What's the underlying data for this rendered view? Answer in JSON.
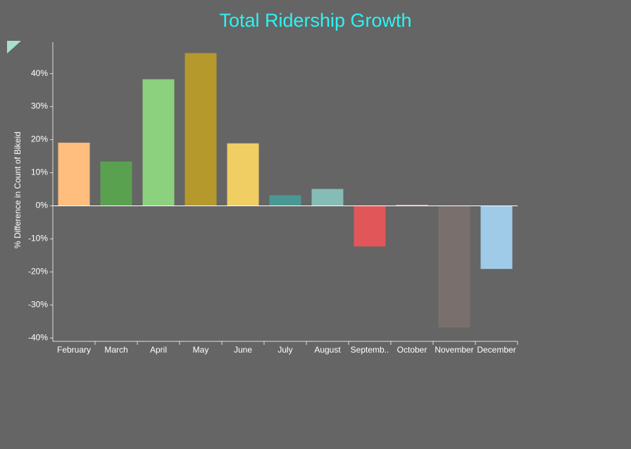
{
  "chart_data": {
    "type": "bar",
    "title": "Total Ridership Growth",
    "y_label": "% Difference in Count of Bikeid",
    "categories": [
      "February",
      "March",
      "April",
      "May",
      "June",
      "July",
      "August",
      "Septemb..",
      "October",
      "November",
      "December"
    ],
    "values": [
      19.1,
      13.4,
      38.3,
      46.2,
      18.9,
      3.2,
      5.1,
      -12.3,
      0.3,
      -36.8,
      -19.1
    ],
    "colors": [
      "#ffbe7d",
      "#59a14f",
      "#8cd17d",
      "#b6992d",
      "#f1ce63",
      "#499894",
      "#86bcb6",
      "#e15759",
      "#ff9d9a",
      "#79706e",
      "#a0cbe8"
    ],
    "ylim": [
      -41,
      49.5
    ],
    "yticks": [
      {
        "value": -40,
        "label": "-40%"
      },
      {
        "value": -30,
        "label": "-30%"
      },
      {
        "value": -20,
        "label": "-20%"
      },
      {
        "value": -10,
        "label": "-10%"
      },
      {
        "value": 0,
        "label": "0%"
      },
      {
        "value": 10,
        "label": "10%"
      },
      {
        "value": 20,
        "label": "20%"
      },
      {
        "value": 30,
        "label": "30%"
      },
      {
        "value": 40,
        "label": "40%"
      }
    ]
  }
}
